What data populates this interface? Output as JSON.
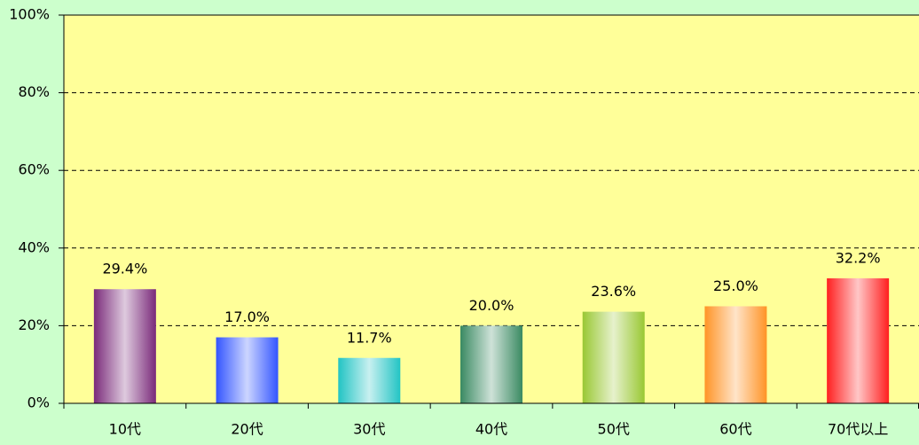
{
  "chart_data": {
    "type": "bar",
    "categories": [
      "10代",
      "20代",
      "30代",
      "40代",
      "50代",
      "60代",
      "70代以上"
    ],
    "values": [
      29.4,
      17.0,
      11.7,
      20.0,
      23.6,
      25.0,
      32.2
    ],
    "value_labels": [
      "29.4%",
      "17.0%",
      "11.7%",
      "20.0%",
      "23.6%",
      "25.0%",
      "32.2%"
    ],
    "colors": [
      "#7a2a7a",
      "#3355ff",
      "#22c4c4",
      "#3a8a62",
      "#99c833",
      "#ff9426",
      "#ff1f1f"
    ],
    "ylim": [
      0,
      100
    ],
    "yticks": [
      {
        "value": 0,
        "label": "0%"
      },
      {
        "value": 20,
        "label": "20%"
      },
      {
        "value": 40,
        "label": "40%"
      },
      {
        "value": 60,
        "label": "60%"
      },
      {
        "value": 80,
        "label": "80%"
      },
      {
        "value": 100,
        "label": "100%"
      }
    ],
    "grid": true
  }
}
